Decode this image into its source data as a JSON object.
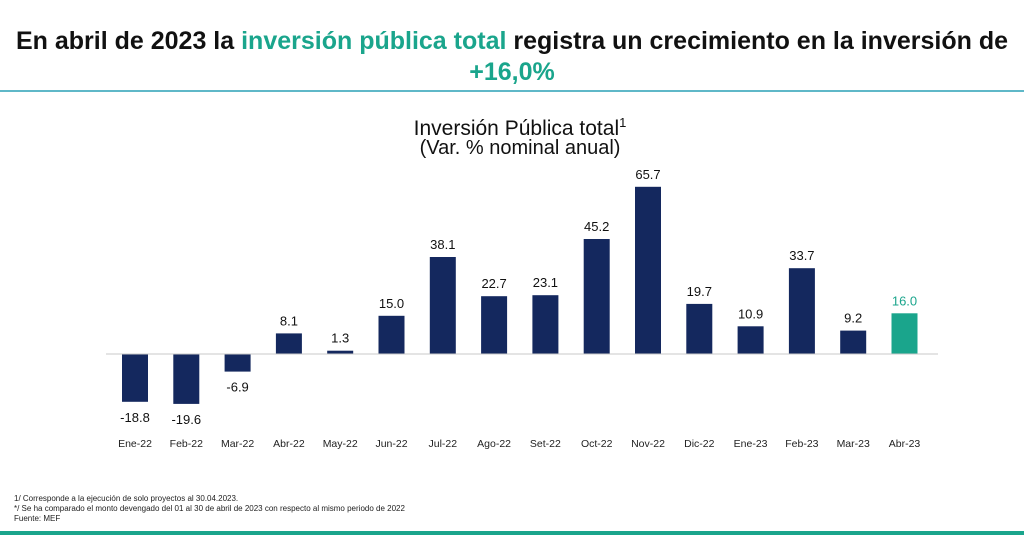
{
  "headline": {
    "part1": "En abril de 2023 la ",
    "highlight1": "inversión pública total",
    "part2": " registra un crecimiento en la inversión de ",
    "highlight2": "+16,0%"
  },
  "colors": {
    "bar": "#14285e",
    "highlight_bar": "#1aa58c",
    "highlight_text": "#1aa58c",
    "rule_top": "#5fb8c8",
    "rule_bottom": "#1aa58c"
  },
  "chart_data": {
    "type": "bar",
    "title": "Inversión Pública total",
    "title_sup": "1",
    "subtitle": "(Var. % nominal anual)",
    "categories": [
      "Ene-22",
      "Feb-22",
      "Mar-22",
      "Abr-22",
      "May-22",
      "Jun-22",
      "Jul-22",
      "Ago-22",
      "Set-22",
      "Oct-22",
      "Nov-22",
      "Dic-22",
      "Ene-23",
      "Feb-23",
      "Mar-23",
      "Abr-23"
    ],
    "values": [
      -18.8,
      -19.6,
      -6.9,
      8.1,
      1.3,
      15.0,
      38.1,
      22.7,
      23.1,
      45.2,
      65.7,
      19.7,
      10.9,
      33.7,
      9.2,
      16.0
    ],
    "value_labels": [
      "-18.8",
      "-19.6",
      "-6.9",
      "8.1",
      "1.3",
      "15.0",
      "38.1",
      "22.7",
      "23.1",
      "45.2",
      "65.7",
      "19.7",
      "10.9",
      "33.7",
      "9.2",
      "16.0"
    ],
    "highlight_index": 15,
    "ylim": [
      -20,
      66
    ],
    "grid": false,
    "legend": "none"
  },
  "footnotes": {
    "note1": "1/ Corresponde a la ejecución de solo proyectos al 30.04.2023.",
    "note2": "*/ Se ha comparado el monto devengado del 01 al 30 de abril de 2023 con respecto al mismo periodo de 2022",
    "source": "Fuente: MEF"
  }
}
